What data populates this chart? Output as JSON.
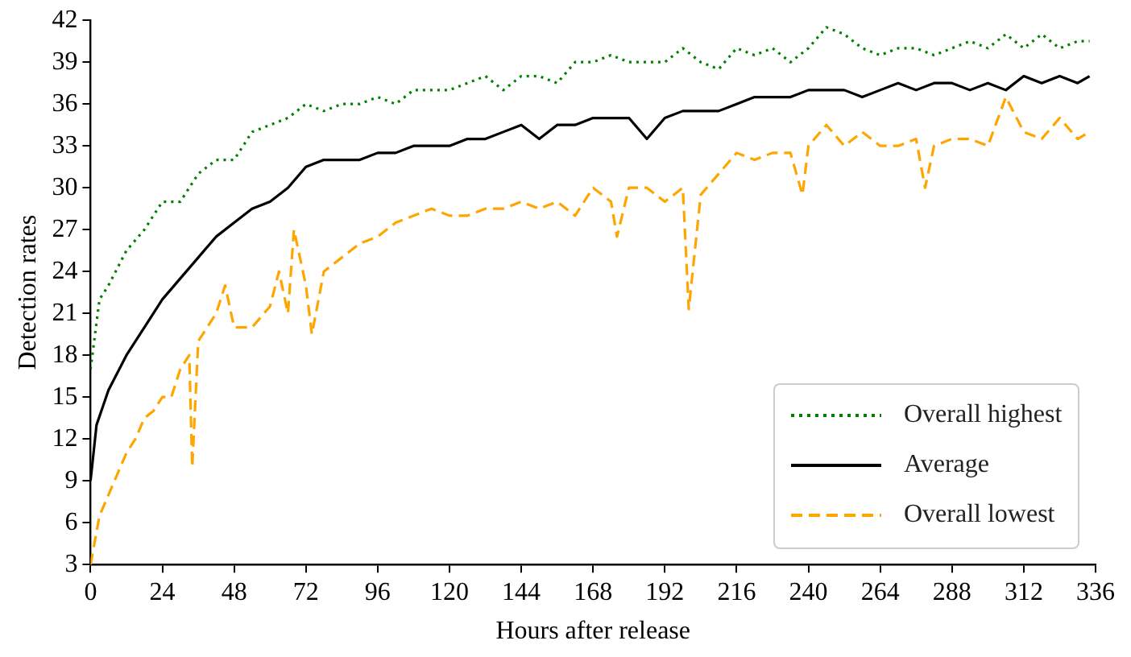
{
  "chart_data": {
    "type": "line",
    "xlabel": "Hours after release",
    "ylabel": "Detection rates",
    "xlim": [
      0,
      336
    ],
    "ylim": [
      3,
      42
    ],
    "xticks": [
      0,
      24,
      48,
      72,
      96,
      120,
      144,
      168,
      192,
      216,
      240,
      264,
      288,
      312,
      336
    ],
    "yticks": [
      3,
      6,
      9,
      12,
      15,
      18,
      21,
      24,
      27,
      30,
      33,
      36,
      39,
      42
    ],
    "grid": false,
    "legend": "bottom right",
    "series": [
      {
        "name": "Overall highest",
        "color": "#008000",
        "line_style": "dotted",
        "x": [
          0,
          3,
          6,
          12,
          18,
          24,
          30,
          36,
          42,
          48,
          54,
          60,
          66,
          72,
          78,
          84,
          90,
          96,
          102,
          108,
          114,
          120,
          126,
          132,
          138,
          144,
          150,
          156,
          162,
          168,
          174,
          180,
          186,
          192,
          198,
          204,
          210,
          216,
          222,
          228,
          234,
          240,
          246,
          252,
          258,
          264,
          270,
          276,
          282,
          288,
          294,
          300,
          306,
          312,
          318,
          324,
          330,
          334
        ],
        "values": [
          17,
          22,
          23,
          25.5,
          27,
          29,
          29,
          31,
          32,
          32,
          34,
          34.5,
          35,
          36,
          35.5,
          36,
          36,
          36.5,
          36,
          37,
          37,
          37,
          37.5,
          38,
          37,
          38,
          38,
          37.5,
          39,
          39,
          39.5,
          39,
          39,
          39,
          40,
          39,
          38.5,
          40,
          39.5,
          40,
          39,
          40,
          41.5,
          41,
          40,
          39.5,
          40,
          40,
          39.5,
          40,
          40.5,
          40,
          41,
          40,
          41,
          40,
          40.5,
          40.5
        ]
      },
      {
        "name": "Average",
        "color": "#000000",
        "line_style": "solid",
        "x": [
          0,
          2,
          6,
          12,
          18,
          24,
          30,
          36,
          42,
          48,
          54,
          60,
          66,
          72,
          78,
          84,
          90,
          96,
          102,
          108,
          114,
          120,
          126,
          132,
          138,
          144,
          150,
          156,
          162,
          168,
          174,
          180,
          186,
          192,
          198,
          204,
          210,
          216,
          222,
          228,
          234,
          240,
          246,
          252,
          258,
          264,
          270,
          276,
          282,
          288,
          294,
          300,
          306,
          312,
          318,
          324,
          330,
          334
        ],
        "values": [
          9,
          13,
          15.5,
          18,
          20,
          22,
          23.5,
          25,
          26.5,
          27.5,
          28.5,
          29,
          30,
          31.5,
          32,
          32,
          32,
          32.5,
          32.5,
          33,
          33,
          33,
          33.5,
          33.5,
          34,
          34.5,
          33.5,
          34.5,
          34.5,
          35,
          35,
          35,
          33.5,
          35,
          35.5,
          35.5,
          35.5,
          36,
          36.5,
          36.5,
          36.5,
          37,
          37,
          37,
          36.5,
          37,
          37.5,
          37,
          37.5,
          37.5,
          37,
          37.5,
          37,
          38,
          37.5,
          38,
          37.5,
          38
        ]
      },
      {
        "name": "Overall lowest",
        "color": "#ffa500",
        "line_style": "dashed",
        "x": [
          0,
          3,
          6,
          9,
          12,
          15,
          18,
          21,
          24,
          27,
          30,
          33,
          34,
          36,
          42,
          45,
          48,
          54,
          60,
          63,
          66,
          68,
          72,
          74,
          78,
          84,
          90,
          96,
          102,
          108,
          114,
          120,
          126,
          132,
          138,
          144,
          150,
          156,
          162,
          168,
          174,
          176,
          180,
          186,
          192,
          198,
          200,
          204,
          210,
          216,
          222,
          228,
          234,
          238,
          240,
          246,
          252,
          258,
          264,
          270,
          276,
          279,
          282,
          288,
          294,
          300,
          306,
          312,
          318,
          324,
          330,
          334
        ],
        "values": [
          3,
          6.5,
          8,
          9.5,
          11,
          12,
          13.5,
          14,
          15,
          15,
          17,
          18,
          10,
          19,
          21,
          23,
          20,
          20,
          21.5,
          24,
          21,
          27,
          23,
          19.5,
          24,
          25,
          26,
          26.5,
          27.5,
          28,
          28.5,
          28,
          28,
          28.5,
          28.5,
          29,
          28.5,
          29,
          28,
          30,
          29,
          26.5,
          30,
          30,
          29,
          30,
          21.3,
          29.5,
          31,
          32.5,
          32,
          32.5,
          32.5,
          29.5,
          33,
          34.5,
          33,
          34,
          33,
          33,
          33.5,
          30,
          33,
          33.5,
          33.5,
          33,
          36.5,
          34,
          33.5,
          35,
          33.5,
          34
        ]
      }
    ]
  }
}
